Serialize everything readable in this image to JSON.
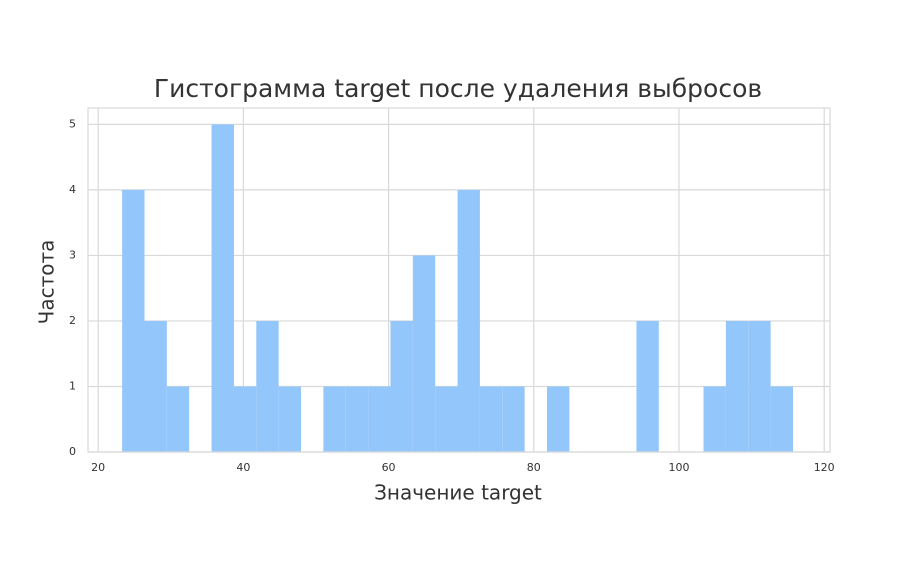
{
  "chart_data": {
    "type": "histogram",
    "title": "Гистограмма target после удаления выбросов",
    "x_label": "Значение target",
    "y_label": "Частота",
    "bins": [
      23.3,
      26.38,
      29.46,
      32.54,
      35.62,
      38.7,
      41.78,
      44.86,
      47.94,
      51.02,
      54.1,
      57.18,
      60.26,
      63.34,
      66.42,
      69.5,
      72.58,
      75.66,
      78.74,
      81.82,
      84.9,
      87.98,
      91.06,
      94.14,
      97.22,
      100.3,
      103.38,
      106.46,
      109.54,
      112.62,
      115.7
    ],
    "counts": [
      4,
      2,
      1,
      0,
      5,
      1,
      2,
      1,
      0,
      1,
      1,
      1,
      2,
      3,
      1,
      4,
      1,
      1,
      0,
      1,
      0,
      0,
      0,
      2,
      0,
      0,
      1,
      2,
      2,
      1
    ],
    "color": "#93c6fb",
    "xlim": [
      18.6,
      120.8
    ],
    "xticks": [
      20,
      40,
      60,
      80,
      100,
      120
    ],
    "ylim": [
      0,
      5.25
    ],
    "yticks": [
      0,
      1,
      2,
      3,
      4,
      5
    ],
    "grid": true
  }
}
